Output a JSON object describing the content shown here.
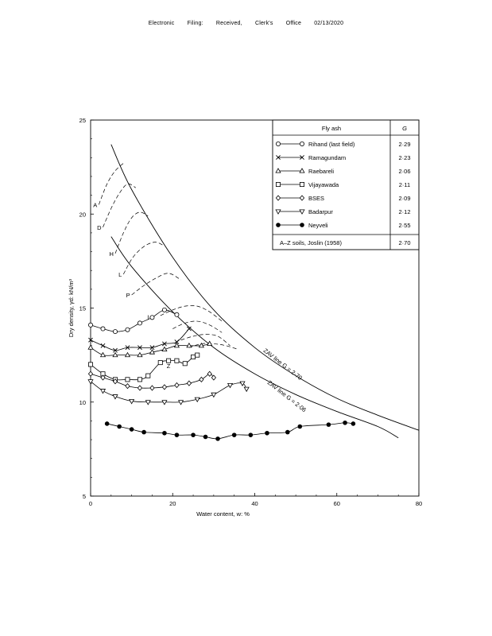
{
  "header": {
    "parts": [
      "Electronic",
      "Filing:",
      "Received,",
      "Clerk's",
      "Office",
      "02/13/2020"
    ]
  },
  "chart_data": {
    "type": "line",
    "xlabel": "Water content, w: %",
    "ylabel": "Dry density, γd: kN/m³",
    "xlim": [
      0,
      80
    ],
    "ylim": [
      5,
      25
    ],
    "xticks": [
      0,
      20,
      40,
      60,
      80
    ],
    "yticks": [
      5,
      10,
      15,
      20,
      25
    ],
    "grid": false,
    "legend": {
      "placement": "top-right",
      "header": [
        "Fly ash",
        "G"
      ],
      "footer_label": "A–Z soils, Joslin (1958)",
      "footer_g": "2·70"
    },
    "series": [
      {
        "name": "Rihand (last field)",
        "g": "2·29",
        "marker": "circle",
        "line": "solid",
        "x": [
          0,
          3,
          6,
          9,
          12,
          15,
          18,
          21
        ],
        "y": [
          14.1,
          13.9,
          13.75,
          13.85,
          14.2,
          14.5,
          14.9,
          14.65
        ]
      },
      {
        "name": "Ramagundam",
        "g": "2·23",
        "marker": "cross",
        "line": "solid",
        "x": [
          0,
          3,
          6,
          9,
          12,
          15,
          18,
          21,
          24
        ],
        "y": [
          13.3,
          13.0,
          12.75,
          12.9,
          12.9,
          12.9,
          13.1,
          13.2,
          13.9
        ]
      },
      {
        "name": "Raebareli",
        "g": "2·06",
        "marker": "triangle-up",
        "line": "solid",
        "x": [
          0,
          3,
          6,
          9,
          12,
          15,
          18,
          21,
          24,
          27,
          29
        ],
        "y": [
          12.9,
          12.5,
          12.5,
          12.5,
          12.5,
          12.65,
          12.8,
          13.0,
          13.0,
          13.0,
          13.1
        ]
      },
      {
        "name": "Vijayawada",
        "g": "2·11",
        "marker": "square",
        "line": "solid",
        "x": [
          0,
          3,
          6,
          9,
          12,
          14,
          17,
          19,
          21,
          23,
          25,
          26
        ],
        "y": [
          12.0,
          11.5,
          11.2,
          11.2,
          11.2,
          11.4,
          12.1,
          12.2,
          12.2,
          12.05,
          12.4,
          12.5
        ]
      },
      {
        "name": "BSES",
        "g": "2·09",
        "marker": "diamond",
        "line": "solid",
        "x": [
          0,
          3,
          6,
          9,
          12,
          15,
          18,
          21,
          24,
          27,
          29,
          30
        ],
        "y": [
          11.5,
          11.3,
          11.1,
          10.85,
          10.75,
          10.75,
          10.8,
          10.9,
          11.0,
          11.2,
          11.5,
          11.3
        ]
      },
      {
        "name": "Badarpur",
        "g": "2·12",
        "marker": "triangle-down",
        "line": "solid",
        "x": [
          0,
          3,
          6,
          10,
          14,
          18,
          22,
          26,
          30,
          34,
          37,
          38
        ],
        "y": [
          11.1,
          10.6,
          10.3,
          10.05,
          10.0,
          10.0,
          10.0,
          10.15,
          10.4,
          10.9,
          11.0,
          10.7
        ]
      },
      {
        "name": "Neyveli",
        "g": "2·55",
        "marker": "filled-circle",
        "line": "solid",
        "x": [
          4,
          7,
          10,
          13,
          18,
          21,
          25,
          28,
          31,
          35,
          39,
          43,
          48,
          51,
          58,
          62,
          64
        ],
        "y": [
          8.85,
          8.7,
          8.55,
          8.4,
          8.35,
          8.25,
          8.25,
          8.15,
          8.05,
          8.25,
          8.25,
          8.35,
          8.4,
          8.7,
          8.8,
          8.9,
          8.85
        ]
      }
    ],
    "soil_curves": [
      {
        "label": "A",
        "x": [
          2,
          4,
          6,
          8
        ],
        "y": [
          20.5,
          21.6,
          22.3,
          22.7
        ]
      },
      {
        "label": "D",
        "x": [
          3,
          5,
          7,
          9,
          11
        ],
        "y": [
          19.3,
          20.3,
          21.1,
          21.6,
          21.4
        ]
      },
      {
        "label": "H",
        "x": [
          6,
          8,
          10,
          12,
          14
        ],
        "y": [
          17.9,
          19.0,
          19.8,
          20.1,
          19.9
        ]
      },
      {
        "label": "L",
        "x": [
          8,
          10,
          12,
          14,
          16,
          18
        ],
        "y": [
          16.8,
          17.6,
          18.1,
          18.4,
          18.5,
          18.3
        ]
      },
      {
        "label": "P",
        "x": [
          10,
          13,
          16,
          19,
          22
        ],
        "y": [
          15.7,
          16.2,
          16.6,
          16.85,
          16.5
        ]
      },
      {
        "label": "",
        "x": [
          17,
          20,
          23,
          26,
          29,
          32
        ],
        "y": [
          14.6,
          14.9,
          15.1,
          15.1,
          14.8,
          14.3
        ]
      },
      {
        "label": "",
        "x": [
          20,
          23,
          26,
          29,
          32
        ],
        "y": [
          13.9,
          14.2,
          14.3,
          14.1,
          13.7
        ]
      },
      {
        "label": "",
        "x": [
          22,
          25,
          28,
          31,
          34
        ],
        "y": [
          13.3,
          13.5,
          13.6,
          13.5,
          13.0
        ]
      },
      {
        "label": "",
        "x": [
          24,
          27,
          30,
          33,
          36
        ],
        "y": [
          12.9,
          13.1,
          13.1,
          13.0,
          12.8
        ]
      }
    ],
    "curve_labels": [
      {
        "text": "I",
        "x": 14,
        "y": 14.4
      },
      {
        "text": "Z",
        "x": 19,
        "y": 11.8
      }
    ],
    "zav_lines": [
      {
        "label": "ZAV line G = 2·70",
        "x": [
          5,
          10,
          20,
          30,
          40,
          50,
          60,
          70,
          80
        ],
        "y": [
          23.7,
          21.3,
          17.7,
          14.9,
          12.9,
          11.4,
          10.2,
          9.3,
          8.5
        ],
        "label_pos": [
          42,
          12.7
        ]
      },
      {
        "label": "ZAV line G = 2·06",
        "x": [
          5,
          10,
          20,
          30,
          40,
          50,
          60,
          70,
          75
        ],
        "y": [
          18.8,
          17.2,
          14.8,
          12.9,
          11.5,
          10.4,
          9.5,
          8.7,
          8.1
        ],
        "label_pos": [
          43,
          11.0
        ]
      }
    ]
  }
}
